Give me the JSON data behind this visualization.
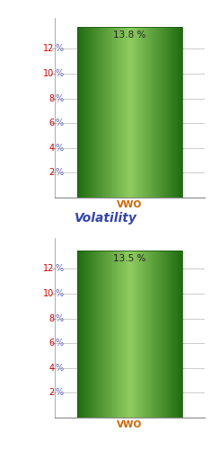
{
  "chart1": {
    "value": 13.8,
    "label": "13.8 %",
    "category": "VWO",
    "ylim": [
      0,
      14.5
    ],
    "yticks": [
      2,
      4,
      6,
      8,
      10,
      12
    ]
  },
  "chart2": {
    "value": 13.5,
    "label": "13.5 %",
    "category": "VWO",
    "ylim": [
      0,
      14.5
    ],
    "yticks": [
      2,
      4,
      6,
      8,
      10,
      12
    ],
    "title": "Volatility"
  },
  "bar_left_color": "#1e6b0f",
  "bar_center_color": "#8fcc60",
  "bar_right_color": "#1e6b0f",
  "tick_number_color": "#cc0000",
  "tick_pct_color": "#6666bb",
  "xlabel_color": "#cc6600",
  "bar_value_color": "#222222",
  "title_color": "#3344aa",
  "background_color": "#ffffff",
  "grid_color": "#cccccc",
  "axis_color": "#888888"
}
